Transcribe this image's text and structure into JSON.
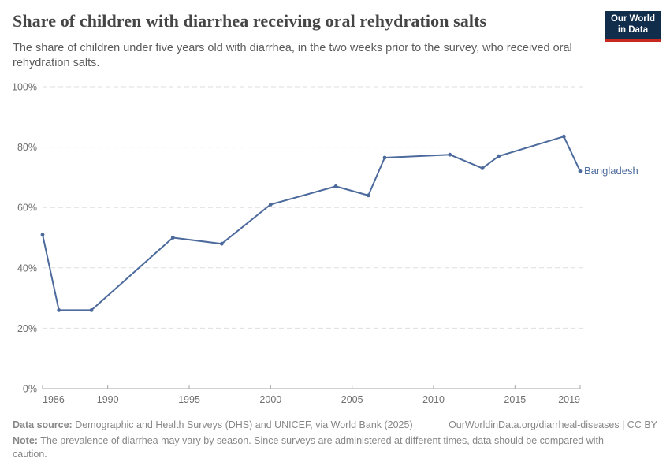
{
  "header": {
    "title": "Share of children with diarrhea receiving oral rehydration salts",
    "subtitle": "The share of children under five years old with diarrhea, in the two weeks prior to the survey, who received oral rehydration salts.",
    "logo": {
      "line1": "Our World",
      "line2": "in Data",
      "bg_color": "#102d4c",
      "stripe_color": "#c5291f"
    }
  },
  "chart_data": {
    "type": "line",
    "title": "Share of children with diarrhea receiving oral rehydration salts",
    "xlabel": "",
    "ylabel": "",
    "xlim": [
      1986,
      2019
    ],
    "ylim": [
      0,
      100
    ],
    "x_ticks": [
      1986,
      1990,
      1995,
      2000,
      2005,
      2010,
      2015,
      2019
    ],
    "y_ticks": [
      0,
      20,
      40,
      60,
      80,
      100
    ],
    "y_tick_suffix": "%",
    "grid": "horizontal-dashed",
    "legend_position": "end-of-line-label",
    "series": [
      {
        "name": "Bangladesh",
        "color": "#4c6a9c",
        "x": [
          1986,
          1987,
          1989,
          1994,
          1997,
          2000,
          2004,
          2006,
          2007,
          2011,
          2013,
          2014,
          2018,
          2019
        ],
        "y": [
          51,
          26,
          26,
          50,
          48,
          61,
          67,
          64,
          76.5,
          77.5,
          73,
          77,
          83.5,
          72
        ]
      }
    ],
    "colors": {
      "gridline": "#dedede",
      "axis_line": "#a6a6a6",
      "tick_label": "#6f6f6f"
    }
  },
  "footer": {
    "data_source_label": "Data source:",
    "data_source_text": " Demographic and Health Surveys (DHS) and UNICEF, via World Bank (2025)",
    "link": "OurWorldinData.org/diarrheal-diseases | CC BY",
    "note_label": "Note:",
    "note_text": " The prevalence of diarrhea may vary by season. Since surveys are administered at different times, data should be compared with caution."
  }
}
